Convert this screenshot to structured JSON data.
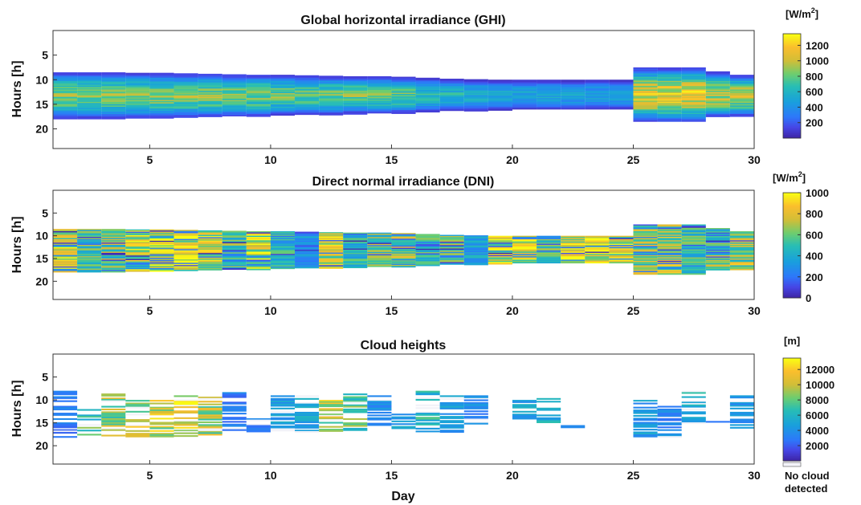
{
  "figure": {
    "xlabel": "Day",
    "ylabel": "Hours [h]"
  },
  "panels": [
    {
      "title": "Global horizontal irradiance (GHI)",
      "unit_base": "[W/m",
      "unit_exp": "2",
      "unit_close": "]",
      "colorbar": {
        "min": 0,
        "max": 1350,
        "ticks": [
          "200",
          "400",
          "600",
          "800",
          "1000",
          "1200"
        ],
        "tick_values": [
          200,
          400,
          600,
          800,
          1000,
          1200
        ]
      }
    },
    {
      "title": "Direct normal irradiance (DNI)",
      "unit_base": "[W/m",
      "unit_exp": "2",
      "unit_close": "]",
      "colorbar": {
        "min": 0,
        "max": 1000,
        "ticks": [
          "0",
          "200",
          "400",
          "600",
          "800",
          "1000"
        ],
        "tick_values": [
          0,
          200,
          400,
          600,
          800,
          1000
        ]
      }
    },
    {
      "title": "Cloud heights",
      "unit_base": "[m]",
      "unit_exp": "",
      "unit_close": "",
      "colorbar": {
        "min": 0,
        "max": 13500,
        "ticks": [
          "2000",
          "4000",
          "6000",
          "8000",
          "10000",
          "12000"
        ],
        "tick_values": [
          2000,
          4000,
          6000,
          8000,
          10000,
          12000
        ]
      },
      "no_cloud_label": [
        "No cloud",
        "detected"
      ]
    }
  ],
  "axes": {
    "xticks": [
      "5",
      "10",
      "15",
      "20",
      "25",
      "30"
    ],
    "xtick_values": [
      5,
      10,
      15,
      20,
      25,
      30
    ],
    "yticks": [
      "5",
      "10",
      "15",
      "20"
    ],
    "ytick_values": [
      5,
      10,
      15,
      20
    ]
  },
  "chart_data": [
    {
      "type": "heatmap",
      "title": "Global horizontal irradiance (GHI)",
      "xlabel": "",
      "ylabel": "Hours [h]",
      "xlim": [
        1,
        30
      ],
      "ylim": [
        0,
        24
      ],
      "colormap": "parula",
      "clim": [
        0,
        1350
      ],
      "colorbar_label": "[W/m2]",
      "days": [
        1,
        2,
        3,
        4,
        5,
        6,
        7,
        8,
        9,
        10,
        11,
        12,
        13,
        14,
        15,
        16,
        17,
        18,
        19,
        20,
        21,
        22,
        23,
        24,
        25,
        26,
        27,
        28,
        29,
        30
      ],
      "sunrise_h": [
        8.5,
        8.5,
        8.5,
        8.6,
        8.6,
        8.7,
        8.8,
        8.9,
        9.0,
        9.0,
        9.1,
        9.2,
        9.3,
        9.3,
        9.4,
        9.6,
        9.8,
        9.9,
        10.0,
        10.0,
        10.0,
        10.0,
        10.0,
        10.0,
        7.5,
        7.5,
        7.5,
        8.3,
        9.0,
        9.0
      ],
      "sunset_h": [
        17.8,
        17.8,
        17.8,
        17.7,
        17.7,
        17.6,
        17.5,
        17.4,
        17.3,
        17.2,
        17.1,
        17.0,
        16.9,
        16.8,
        16.7,
        16.5,
        16.3,
        16.2,
        16.1,
        16.0,
        16.0,
        16.0,
        16.0,
        16.0,
        18.5,
        18.5,
        18.5,
        17.5,
        17.3,
        16.8
      ],
      "typical_peak_value": [
        850,
        850,
        850,
        850,
        850,
        850,
        850,
        850,
        850,
        800,
        800,
        800,
        800,
        800,
        800,
        650,
        600,
        550,
        500,
        500,
        500,
        500,
        500,
        500,
        1100,
        1100,
        1100,
        1000,
        950,
        900
      ]
    },
    {
      "type": "heatmap",
      "title": "Direct normal irradiance (DNI)",
      "xlabel": "",
      "ylabel": "Hours [h]",
      "xlim": [
        1,
        30
      ],
      "ylim": [
        0,
        24
      ],
      "colormap": "parula",
      "clim": [
        0,
        1000
      ],
      "colorbar_label": "[W/m2]",
      "days": [
        1,
        2,
        3,
        4,
        5,
        6,
        7,
        8,
        9,
        10,
        11,
        12,
        13,
        14,
        15,
        16,
        17,
        18,
        19,
        20,
        21,
        22,
        23,
        24,
        25,
        26,
        27,
        28,
        29,
        30
      ],
      "sunrise_h": [
        8.5,
        8.5,
        8.5,
        8.6,
        8.6,
        8.7,
        8.8,
        8.9,
        9.0,
        9.0,
        9.1,
        9.2,
        9.3,
        9.3,
        9.4,
        9.6,
        9.8,
        9.9,
        10.0,
        10.0,
        10.0,
        10.0,
        10.0,
        10.0,
        7.5,
        7.5,
        7.5,
        8.3,
        9.0,
        9.0
      ],
      "sunset_h": [
        17.8,
        17.8,
        17.8,
        17.7,
        17.7,
        17.6,
        17.5,
        17.4,
        17.3,
        17.2,
        17.1,
        17.0,
        16.9,
        16.8,
        16.7,
        16.5,
        16.3,
        16.2,
        16.1,
        16.0,
        16.0,
        16.0,
        16.0,
        16.0,
        18.5,
        18.5,
        18.5,
        17.5,
        17.3,
        16.8
      ],
      "typical_peak_value": [
        850,
        600,
        650,
        850,
        900,
        900,
        800,
        600,
        850,
        500,
        350,
        800,
        500,
        650,
        750,
        550,
        600,
        400,
        900,
        900,
        600,
        900,
        900,
        850,
        700,
        750,
        550,
        650,
        750,
        300
      ]
    },
    {
      "type": "heatmap",
      "title": "Cloud heights",
      "xlabel": "Day",
      "ylabel": "Hours [h]",
      "xlim": [
        1,
        30
      ],
      "ylim": [
        0,
        24
      ],
      "colormap": "parula",
      "clim": [
        0,
        13500
      ],
      "colorbar_label": "[m]",
      "days": [
        1,
        2,
        3,
        4,
        5,
        6,
        7,
        8,
        9,
        10,
        11,
        12,
        13,
        14,
        15,
        16,
        17,
        18,
        19,
        20,
        21,
        22,
        23,
        24,
        25,
        26,
        27,
        28,
        29,
        30
      ],
      "cloud_start_h": [
        8.0,
        12.0,
        8.0,
        10.0,
        10.0,
        9.0,
        9.0,
        8.0,
        14.0,
        9.0,
        9.0,
        10.0,
        8.0,
        9.0,
        13.0,
        8.0,
        9.0,
        9.0,
        null,
        10.0,
        9.0,
        14.0,
        null,
        null,
        10.0,
        11.0,
        8.0,
        14.0,
        9.0,
        9.0
      ],
      "cloud_end_h": [
        18.0,
        18.0,
        18.0,
        18.0,
        18.0,
        18.0,
        18.0,
        17.0,
        17.0,
        17.0,
        17.0,
        17.0,
        17.0,
        16.0,
        17.0,
        17.0,
        17.0,
        16.0,
        null,
        14.0,
        15.0,
        16.0,
        null,
        null,
        18.0,
        18.0,
        15.0,
        16.0,
        16.0,
        16.0
      ],
      "typical_cloud_height_m": [
        3000,
        7000,
        9000,
        9500,
        10000,
        10500,
        9000,
        3000,
        3000,
        4500,
        5000,
        10000,
        8000,
        4000,
        5000,
        6000,
        4500,
        3500,
        null,
        5000,
        6000,
        4000,
        null,
        null,
        4500,
        3500,
        5500,
        3000,
        4000,
        3500
      ]
    }
  ]
}
